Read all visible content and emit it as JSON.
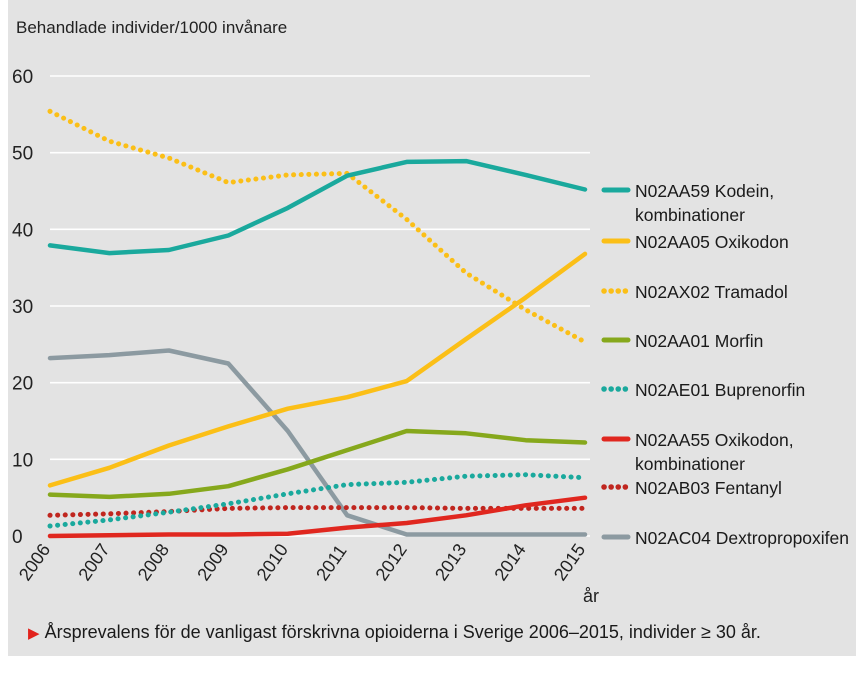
{
  "chart_data": {
    "type": "line",
    "ylabel": "Behandlade individer/1000 invånare",
    "xlabel": "år",
    "ylim": [
      0,
      60
    ],
    "yticks": [
      0,
      10,
      20,
      30,
      40,
      50,
      60
    ],
    "categories": [
      "2006",
      "2007",
      "2008",
      "2009",
      "2010",
      "2011",
      "2012",
      "2013",
      "2014",
      "2015"
    ],
    "series": [
      {
        "name": "N02AA59 Kodein, kombinationer",
        "label_lines": [
          "N02AA59 Kodein,",
          "kombinationer"
        ],
        "color": "#1aa99d",
        "style": "solid",
        "values": [
          37.9,
          36.9,
          37.3,
          39.2,
          42.8,
          47.0,
          48.8,
          48.9,
          47.1,
          45.2
        ]
      },
      {
        "name": "N02AA05 Oxikodon",
        "label_lines": [
          "N02AA05 Oxikodon"
        ],
        "color": "#fbbf17",
        "style": "solid",
        "values": [
          6.6,
          8.9,
          11.8,
          14.3,
          16.6,
          18.1,
          20.2,
          25.7,
          31.1,
          36.8
        ]
      },
      {
        "name": "N02AX02 Tramadol",
        "label_lines": [
          "N02AX02 Tramadol"
        ],
        "color": "#fbbf17",
        "style": "dotted",
        "values": [
          55.4,
          51.5,
          49.3,
          46.1,
          47.1,
          47.3,
          41.3,
          34.3,
          29.5,
          25.3
        ]
      },
      {
        "name": "N02AA01 Morfin",
        "label_lines": [
          "N02AA01 Morfin"
        ],
        "color": "#86a81c",
        "style": "solid",
        "values": [
          5.4,
          5.1,
          5.5,
          6.5,
          8.7,
          11.2,
          13.7,
          13.4,
          12.5,
          12.2
        ]
      },
      {
        "name": "N02AE01 Buprenorfin",
        "label_lines": [
          "N02AE01 Buprenorfin"
        ],
        "color": "#1aa99d",
        "style": "dotted",
        "values": [
          1.3,
          2.1,
          3.1,
          4.2,
          5.5,
          6.7,
          7.0,
          7.8,
          8.0,
          7.6
        ]
      },
      {
        "name": "N02AA55 Oxikodon, kombinationer",
        "label_lines": [
          "N02AA55 Oxikodon,",
          "kombinationer"
        ],
        "color": "#e0271f",
        "style": "solid",
        "values": [
          0.0,
          0.1,
          0.2,
          0.2,
          0.3,
          1.1,
          1.7,
          2.7,
          4.0,
          5.0
        ]
      },
      {
        "name": "N02AB03 Fentanyl",
        "label_lines": [
          "N02AB03 Fentanyl"
        ],
        "color": "#c0261f",
        "style": "dotted",
        "values": [
          2.7,
          2.9,
          3.2,
          3.6,
          3.7,
          3.7,
          3.7,
          3.6,
          3.6,
          3.6
        ]
      },
      {
        "name": "N02AC04 Dextropropoxifen",
        "label_lines": [
          "N02AC04 Dextropropoxifen"
        ],
        "color": "#8c9aa1",
        "style": "solid",
        "values": [
          23.2,
          23.6,
          24.2,
          22.5,
          13.7,
          2.7,
          0.2,
          0.2,
          0.2,
          0.2
        ]
      }
    ]
  },
  "caption": {
    "marker": "▶",
    "text": "Årsprevalens för de vanligast förskrivna opioiderna i Sverige 2006–2015, individer ≥ 30 år."
  }
}
